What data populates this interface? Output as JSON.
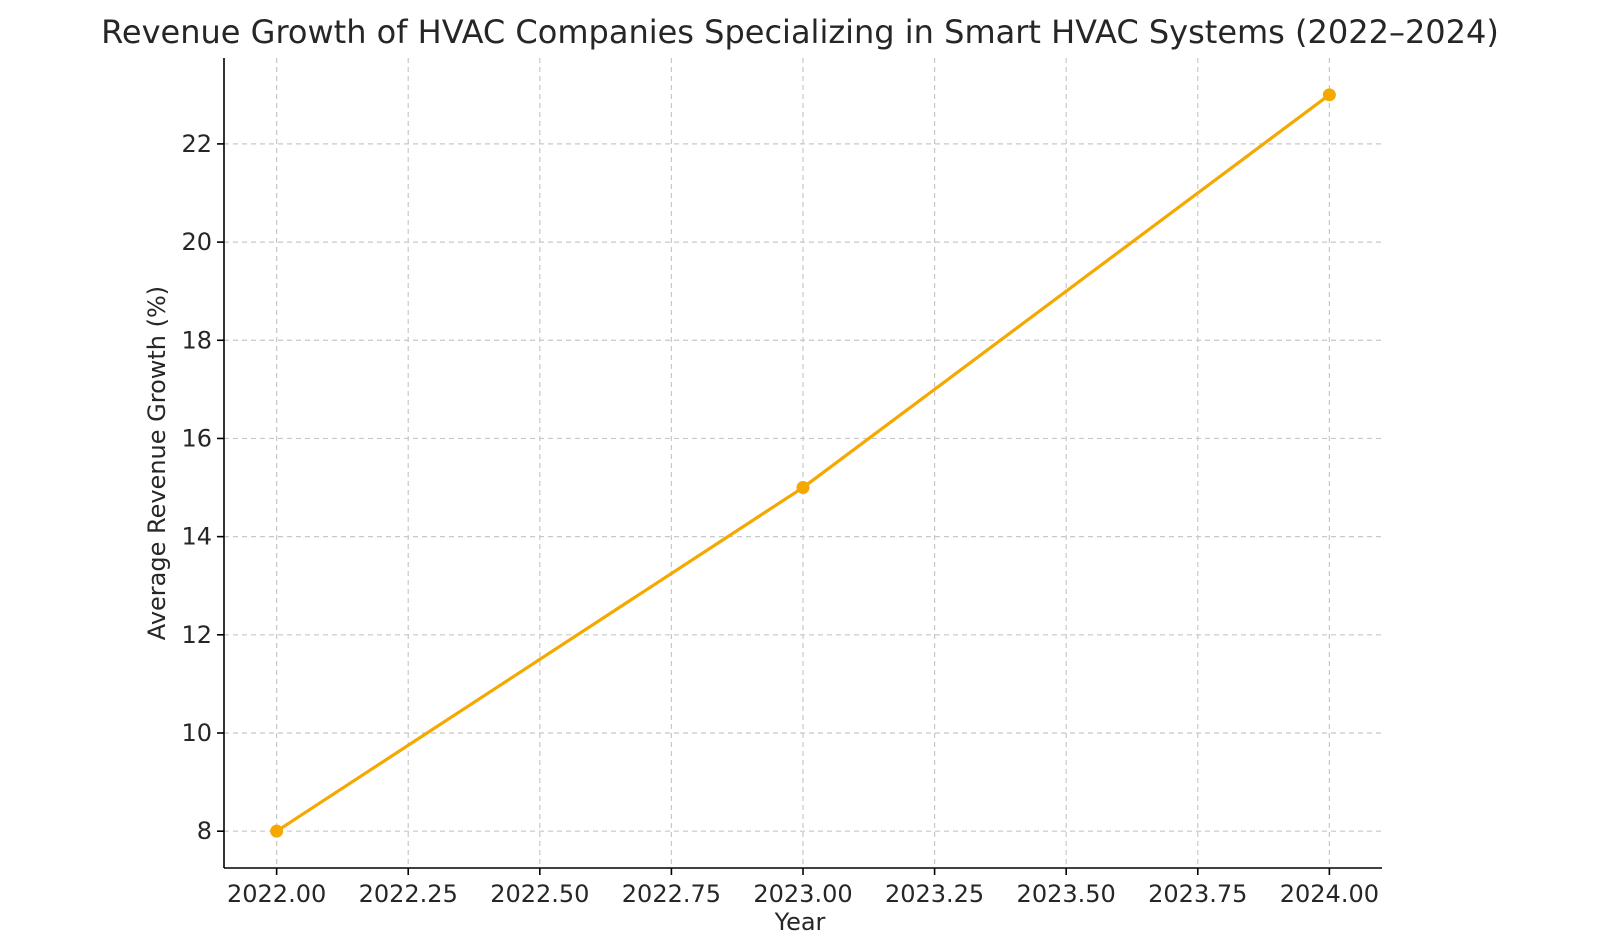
{
  "chart_data": {
    "type": "line",
    "title": "Revenue Growth of HVAC Companies Specializing in Smart HVAC Systems (2022–2024)",
    "xlabel": "Year",
    "ylabel": "Average Revenue Growth (%)",
    "x": [
      2022,
      2023,
      2024
    ],
    "series": [
      {
        "values": [
          8,
          15,
          23
        ],
        "color": "#f5a800"
      }
    ],
    "xlim": [
      2021.9,
      2024.1
    ],
    "ylim": [
      7.25,
      23.75
    ],
    "xticks": [
      2022.0,
      2022.25,
      2022.5,
      2022.75,
      2023.0,
      2023.25,
      2023.5,
      2023.75,
      2024.0
    ],
    "xtick_labels": [
      "2022.00",
      "2022.25",
      "2022.50",
      "2022.75",
      "2023.00",
      "2023.25",
      "2023.50",
      "2023.75",
      "2024.00"
    ],
    "yticks": [
      8,
      10,
      12,
      14,
      16,
      18,
      20,
      22
    ],
    "ytick_labels": [
      "8",
      "10",
      "12",
      "14",
      "16",
      "18",
      "20",
      "22"
    ],
    "grid": true,
    "legend": "none",
    "marker": "circle"
  }
}
